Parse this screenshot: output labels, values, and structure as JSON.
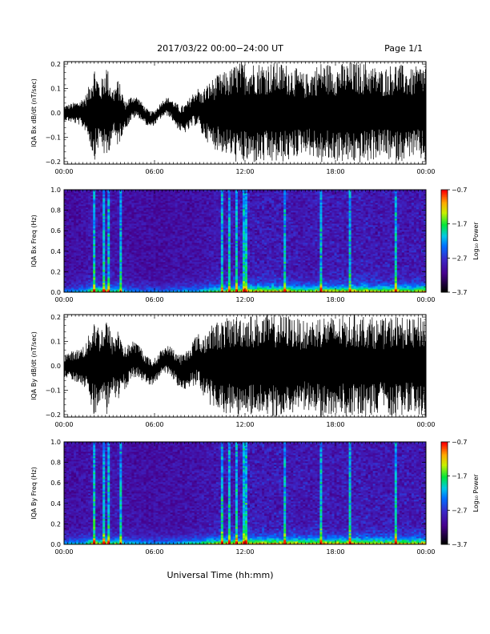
{
  "header": {
    "title": "2017/03/22  00:00−24:00 UT",
    "page": "Page 1/1"
  },
  "xaxis": {
    "label": "Universal Time (hh:mm)",
    "range_hours": [
      0,
      24
    ],
    "ticks": [
      {
        "hour": 0,
        "label": "00:00"
      },
      {
        "hour": 6,
        "label": "06:00"
      },
      {
        "hour": 12,
        "label": "12:00"
      },
      {
        "hour": 18,
        "label": "18:00"
      },
      {
        "hour": 24,
        "label": "00:00"
      }
    ]
  },
  "chart_data": [
    {
      "type": "line",
      "ylabel": "IQA Bx dB/dt (nT/sec)",
      "ylim": [
        -0.21,
        0.21
      ],
      "yticks": [
        -0.2,
        -0.1,
        0.0,
        0.1,
        0.2
      ],
      "ytick_labels": [
        "−0.2",
        "−0.1",
        "0.0",
        "0.1",
        "0.2"
      ],
      "amplitude_envelope": {
        "hours": [
          0,
          1,
          1.5,
          2,
          2.4,
          2.8,
          3.2,
          3.6,
          4,
          5,
          6,
          7,
          8,
          9,
          9.5,
          10,
          11,
          11.5,
          12,
          13,
          14,
          15,
          16,
          17,
          18,
          19,
          20,
          21,
          22,
          23,
          24
        ],
        "amplitude": [
          0.03,
          0.05,
          0.08,
          0.2,
          0.12,
          0.21,
          0.1,
          0.14,
          0.06,
          0.04,
          0.03,
          0.04,
          0.06,
          0.08,
          0.12,
          0.15,
          0.18,
          0.21,
          0.21,
          0.21,
          0.21,
          0.2,
          0.16,
          0.21,
          0.2,
          0.21,
          0.21,
          0.18,
          0.21,
          0.18,
          0.21
        ]
      }
    },
    {
      "type": "heatmap",
      "ylabel": "IQA Bx Freq (Hz)",
      "ylim": [
        0,
        1.0
      ],
      "yticks": [
        0.0,
        0.2,
        0.4,
        0.6,
        0.8,
        1.0
      ],
      "ytick_labels": [
        "0.0",
        "0.2",
        "0.4",
        "0.6",
        "0.8",
        "1.0"
      ],
      "colorbar": {
        "label": "Log₁₀ Power",
        "range": [
          -3.7,
          -0.7
        ],
        "ticks": [
          "−0.7",
          "−1.7",
          "−2.7",
          "−3.7"
        ]
      },
      "activity_hours": [
        2.0,
        2.7,
        3.0,
        3.8,
        10.5,
        11.0,
        11.5,
        12.0,
        14.7,
        17.0,
        19.0,
        22.0
      ]
    },
    {
      "type": "line",
      "ylabel": "IQA By dB/dt (nT/sec)",
      "ylim": [
        -0.21,
        0.21
      ],
      "yticks": [
        -0.2,
        -0.1,
        0.0,
        0.1,
        0.2
      ],
      "ytick_labels": [
        "−0.2",
        "−0.1",
        "0.0",
        "0.1",
        "0.2"
      ],
      "amplitude_envelope": {
        "hours": [
          0,
          1,
          1.5,
          2,
          2.4,
          2.8,
          3.2,
          3.6,
          4,
          5,
          6,
          7,
          8,
          9,
          9.5,
          10,
          11,
          11.5,
          12,
          13,
          14,
          15,
          16,
          17,
          18,
          19,
          20,
          21,
          22,
          23,
          24
        ],
        "amplitude": [
          0.05,
          0.07,
          0.1,
          0.21,
          0.15,
          0.21,
          0.12,
          0.16,
          0.09,
          0.07,
          0.05,
          0.06,
          0.08,
          0.11,
          0.15,
          0.18,
          0.2,
          0.21,
          0.21,
          0.21,
          0.21,
          0.21,
          0.18,
          0.21,
          0.2,
          0.21,
          0.21,
          0.19,
          0.21,
          0.19,
          0.21
        ]
      }
    },
    {
      "type": "heatmap",
      "ylabel": "IQA By Freq (Hz)",
      "ylim": [
        0,
        1.0
      ],
      "yticks": [
        0.0,
        0.2,
        0.4,
        0.6,
        0.8,
        1.0
      ],
      "ytick_labels": [
        "0.0",
        "0.2",
        "0.4",
        "0.6",
        "0.8",
        "1.0"
      ],
      "colorbar": {
        "label": "Log₁₀ Power",
        "range": [
          -3.7,
          -0.7
        ],
        "ticks": [
          "−0.7",
          "−1.7",
          "−2.7",
          "−3.7"
        ]
      },
      "activity_hours": [
        2.0,
        2.7,
        3.0,
        3.8,
        10.5,
        11.0,
        11.5,
        12.0,
        14.7,
        17.0,
        19.0,
        22.0
      ]
    }
  ]
}
